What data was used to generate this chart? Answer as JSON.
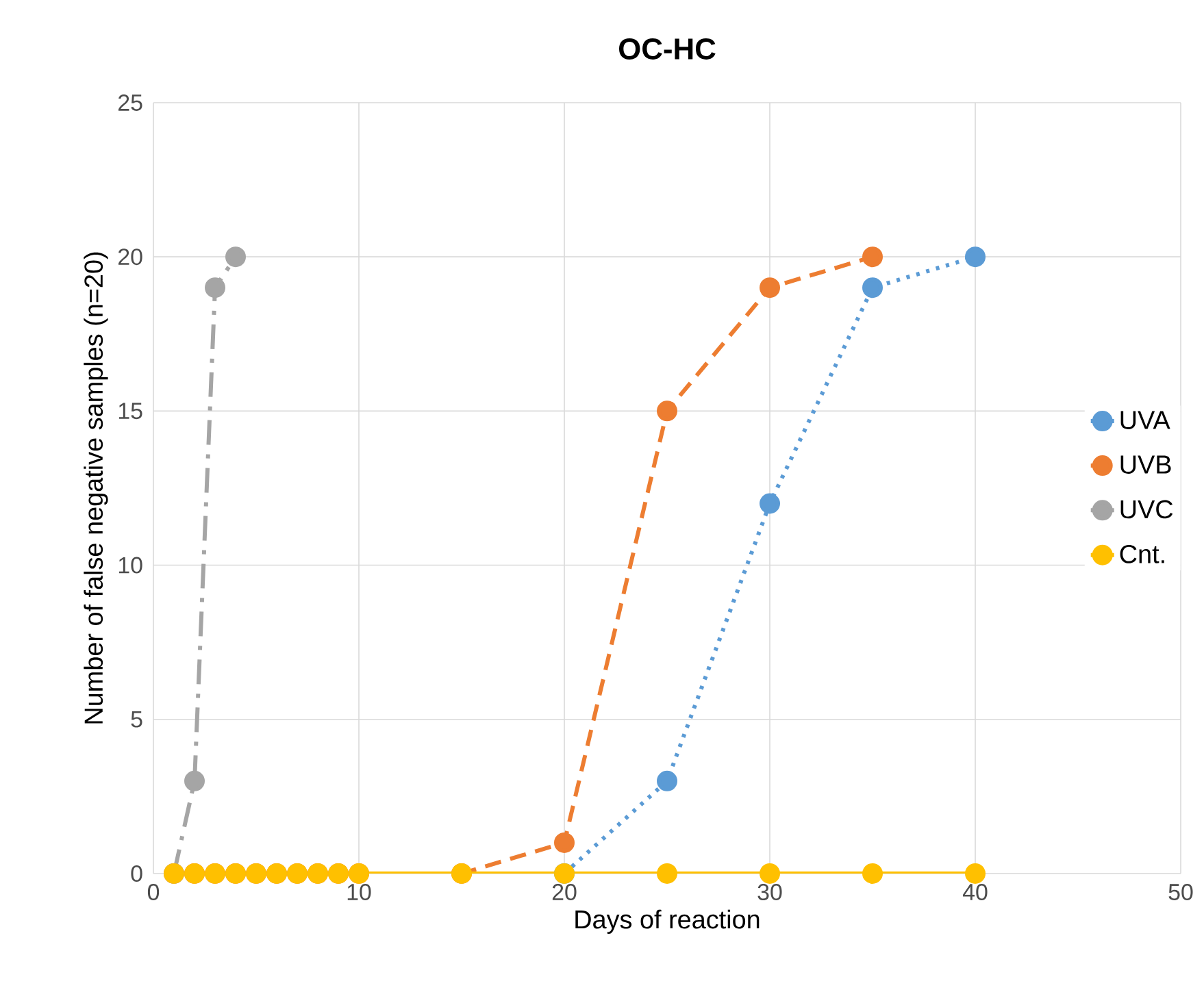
{
  "chart_data": {
    "type": "line",
    "title": "OC-HC",
    "xlabel": "Days of reaction",
    "ylabel": "Number of false negative samples (n=20)",
    "series": [
      {
        "name": "UVA",
        "color": "#5b9bd5",
        "line_style": "dotted",
        "x": [
          20,
          25,
          30,
          35,
          40
        ],
        "values": [
          0,
          3,
          12,
          19,
          20
        ]
      },
      {
        "name": "UVB",
        "color": "#ed7d31",
        "line_style": "dashed",
        "x": [
          1,
          2,
          3,
          4,
          5,
          6,
          7,
          8,
          9,
          10,
          15,
          20,
          25,
          30,
          35
        ],
        "values": [
          0,
          0,
          0,
          0,
          0,
          0,
          0,
          0,
          0,
          0,
          0,
          1,
          15,
          19,
          20
        ]
      },
      {
        "name": "UVC",
        "color": "#a5a5a5",
        "line_style": "dashdot",
        "x": [
          1,
          2,
          3,
          4
        ],
        "values": [
          0,
          3,
          19,
          20
        ]
      },
      {
        "name": "Cnt.",
        "color": "#ffc000",
        "line_style": "solid",
        "x": [
          1,
          2,
          3,
          4,
          5,
          6,
          7,
          8,
          9,
          10,
          15,
          20,
          25,
          30,
          35,
          40
        ],
        "values": [
          0,
          0,
          0,
          0,
          0,
          0,
          0,
          0,
          0,
          0,
          0,
          0,
          0,
          0,
          0,
          0
        ]
      }
    ],
    "marker": "circle",
    "xlim": [
      0,
      50
    ],
    "ylim": [
      0,
      25
    ],
    "xticks": [
      0,
      10,
      20,
      30,
      40,
      50
    ],
    "yticks": [
      0,
      5,
      10,
      15,
      20,
      25
    ],
    "grid": true,
    "legend": "right"
  }
}
